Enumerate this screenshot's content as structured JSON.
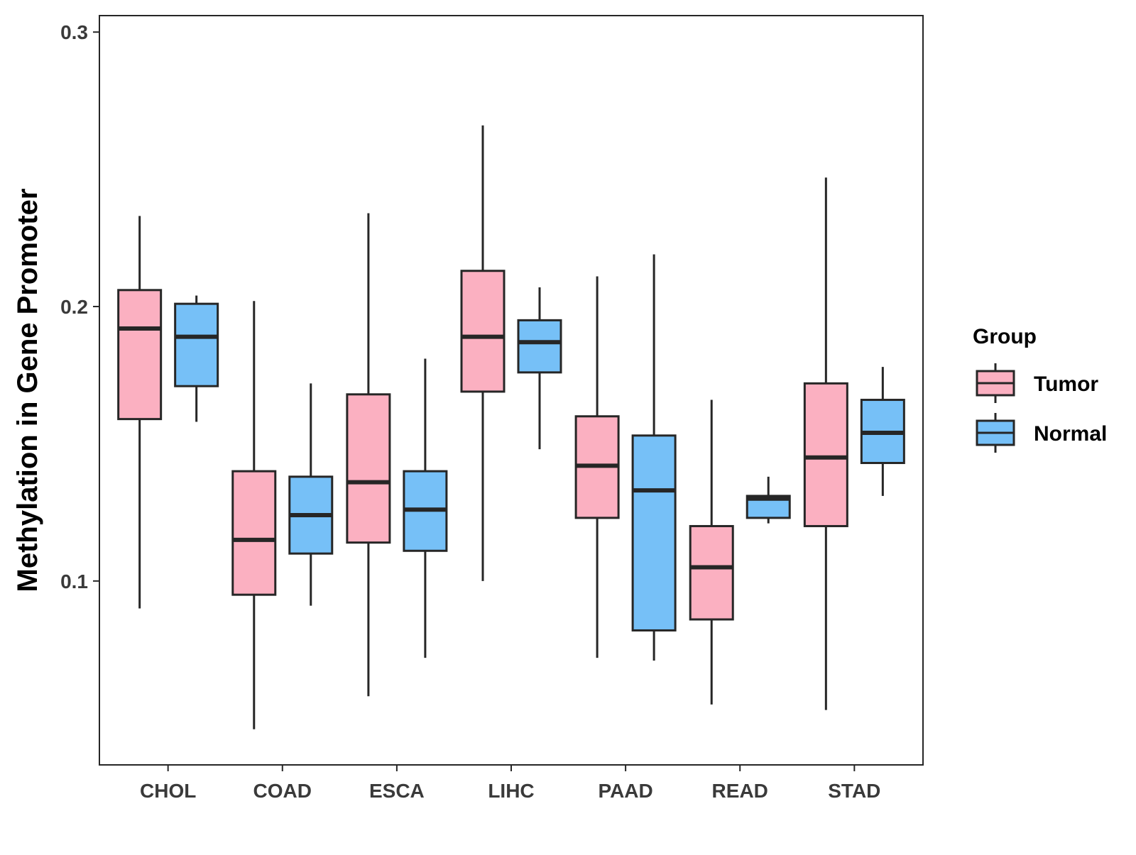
{
  "chart_data": {
    "type": "boxplot",
    "title": "",
    "xlabel": "",
    "ylabel": "Methylation in Gene Promoter",
    "ylim": [
      0.033,
      0.306
    ],
    "yticks": [
      0.1,
      0.2,
      0.3
    ],
    "ytick_labels": [
      "0.1",
      "0.2",
      "0.3"
    ],
    "grid": false,
    "categories": [
      "CHOL",
      "COAD",
      "ESCA",
      "LIHC",
      "PAAD",
      "READ",
      "STAD"
    ],
    "legend": {
      "title": "Group",
      "position": "right",
      "entries": [
        "Tumor",
        "Normal"
      ]
    },
    "colors": {
      "Tumor": "#FBB0C1",
      "Normal": "#76C0F7",
      "outline": "#262626"
    },
    "series": [
      {
        "name": "Tumor",
        "boxes": [
          {
            "whisker_low": 0.09,
            "q1": 0.159,
            "median": 0.192,
            "q3": 0.206,
            "whisker_high": 0.233
          },
          {
            "whisker_low": 0.046,
            "q1": 0.095,
            "median": 0.115,
            "q3": 0.14,
            "whisker_high": 0.202
          },
          {
            "whisker_low": 0.058,
            "q1": 0.114,
            "median": 0.136,
            "q3": 0.168,
            "whisker_high": 0.234
          },
          {
            "whisker_low": 0.1,
            "q1": 0.169,
            "median": 0.189,
            "q3": 0.213,
            "whisker_high": 0.266
          },
          {
            "whisker_low": 0.072,
            "q1": 0.123,
            "median": 0.142,
            "q3": 0.16,
            "whisker_high": 0.211
          },
          {
            "whisker_low": 0.055,
            "q1": 0.086,
            "median": 0.105,
            "q3": 0.12,
            "whisker_high": 0.166
          },
          {
            "whisker_low": 0.053,
            "q1": 0.12,
            "median": 0.145,
            "q3": 0.172,
            "whisker_high": 0.247
          }
        ]
      },
      {
        "name": "Normal",
        "boxes": [
          {
            "whisker_low": 0.158,
            "q1": 0.171,
            "median": 0.189,
            "q3": 0.201,
            "whisker_high": 0.204
          },
          {
            "whisker_low": 0.091,
            "q1": 0.11,
            "median": 0.124,
            "q3": 0.138,
            "whisker_high": 0.172
          },
          {
            "whisker_low": 0.072,
            "q1": 0.111,
            "median": 0.126,
            "q3": 0.14,
            "whisker_high": 0.181
          },
          {
            "whisker_low": 0.148,
            "q1": 0.176,
            "median": 0.187,
            "q3": 0.195,
            "whisker_high": 0.207
          },
          {
            "whisker_low": 0.071,
            "q1": 0.082,
            "median": 0.133,
            "q3": 0.153,
            "whisker_high": 0.219
          },
          {
            "whisker_low": 0.121,
            "q1": 0.123,
            "median": 0.13,
            "q3": 0.131,
            "whisker_high": 0.138
          },
          {
            "whisker_low": 0.131,
            "q1": 0.143,
            "median": 0.154,
            "q3": 0.166,
            "whisker_high": 0.178
          }
        ]
      }
    ]
  }
}
